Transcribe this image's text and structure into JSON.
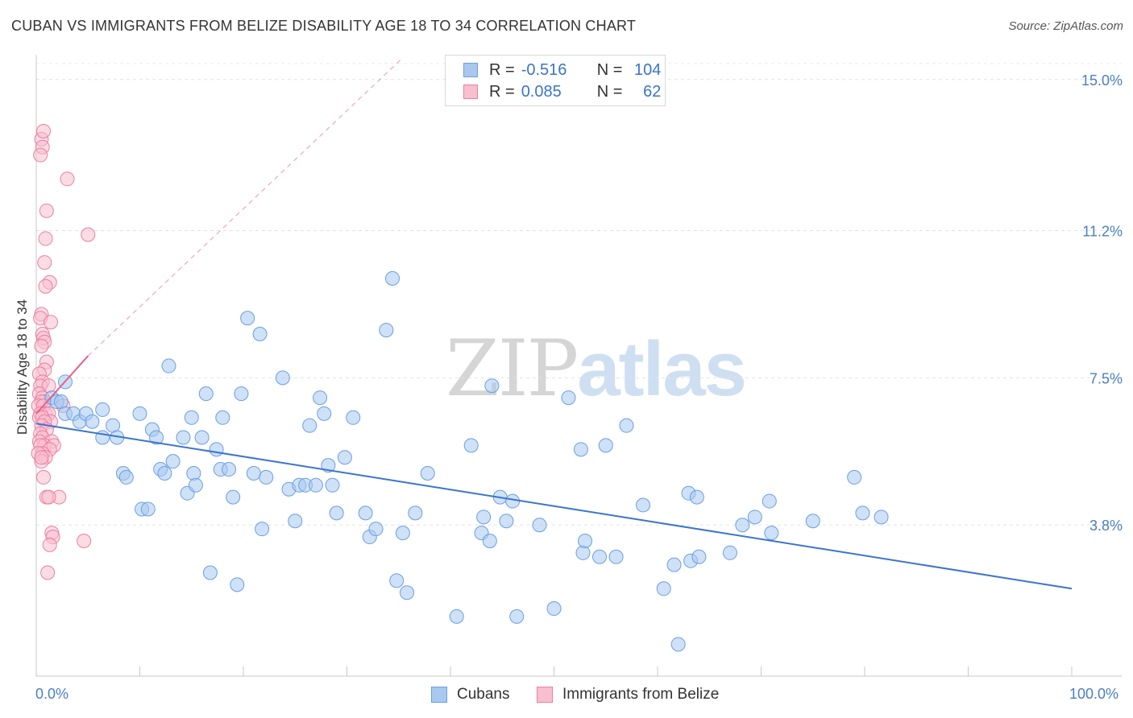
{
  "title": "CUBAN VS IMMIGRANTS FROM BELIZE DISABILITY AGE 18 TO 34 CORRELATION CHART",
  "source": "Source: ZipAtlas.com",
  "watermark": {
    "part1": "ZIP",
    "part2": "atlas"
  },
  "legend": {
    "rows": [
      {
        "r_label": "R =",
        "r_value": "-0.516",
        "n_label": "N =",
        "n_value": "104",
        "color": "#a8c8f0",
        "border": "#6a9fe0"
      },
      {
        "r_label": "R =",
        "r_value": "0.085",
        "n_label": "N =",
        "n_value": "62",
        "color": "#f8bfd0",
        "border": "#ec7fa0"
      }
    ]
  },
  "bottom_legend": [
    {
      "label": "Cubans",
      "color": "#a8c8f0",
      "border": "#6a9fe0"
    },
    {
      "label": "Immigrants from Belize",
      "color": "#f8bfd0",
      "border": "#ec7fa0"
    }
  ],
  "chart_data": {
    "type": "scatter",
    "title": "CUBAN VS IMMIGRANTS FROM BELIZE DISABILITY AGE 18 TO 34 CORRELATION CHART",
    "xlabel": "",
    "ylabel": "Disability Age 18 to 34",
    "xlim": [
      0,
      100
    ],
    "ylim": [
      0,
      15.4
    ],
    "x_tick_labels": [
      "0.0%",
      "100.0%"
    ],
    "y_ticks": [
      {
        "value": 3.8,
        "label": "3.8%"
      },
      {
        "value": 7.5,
        "label": "7.5%"
      },
      {
        "value": 11.2,
        "label": "11.2%"
      },
      {
        "value": 15.0,
        "label": "15.0%"
      }
    ],
    "series": [
      {
        "name": "Cubans",
        "color": "#a8c8f0",
        "stroke": "#6a9fe0",
        "trend": {
          "x0": 0,
          "y0": 6.35,
          "x1": 100,
          "y1": 2.2,
          "color": "#3a74d0"
        },
        "points": [
          [
            1.5,
            7.0
          ],
          [
            2.0,
            6.9
          ],
          [
            2.4,
            6.9
          ],
          [
            2.8,
            7.4
          ],
          [
            2.8,
            6.6
          ],
          [
            3.6,
            6.6
          ],
          [
            4.2,
            6.4
          ],
          [
            4.8,
            6.6
          ],
          [
            5.4,
            6.4
          ],
          [
            6.4,
            6.7
          ],
          [
            6.4,
            6.0
          ],
          [
            7.4,
            6.3
          ],
          [
            7.8,
            6.0
          ],
          [
            8.4,
            5.1
          ],
          [
            8.7,
            5.0
          ],
          [
            10.0,
            6.6
          ],
          [
            10.2,
            4.2
          ],
          [
            10.8,
            4.2
          ],
          [
            11.2,
            6.2
          ],
          [
            11.6,
            6.0
          ],
          [
            12.0,
            5.2
          ],
          [
            12.4,
            5.1
          ],
          [
            12.8,
            7.8
          ],
          [
            13.2,
            5.4
          ],
          [
            14.2,
            6.0
          ],
          [
            14.6,
            4.6
          ],
          [
            15.0,
            6.5
          ],
          [
            15.2,
            5.1
          ],
          [
            15.4,
            4.8
          ],
          [
            16.0,
            6.0
          ],
          [
            16.4,
            7.1
          ],
          [
            16.8,
            2.6
          ],
          [
            17.4,
            5.7
          ],
          [
            17.8,
            5.2
          ],
          [
            18.0,
            6.5
          ],
          [
            18.6,
            5.2
          ],
          [
            19.0,
            4.5
          ],
          [
            19.4,
            2.3
          ],
          [
            19.8,
            7.1
          ],
          [
            20.4,
            9.0
          ],
          [
            21.0,
            5.1
          ],
          [
            21.6,
            8.6
          ],
          [
            21.8,
            3.7
          ],
          [
            22.2,
            5.0
          ],
          [
            23.8,
            7.5
          ],
          [
            24.4,
            4.7
          ],
          [
            25.0,
            3.9
          ],
          [
            25.4,
            4.8
          ],
          [
            26.0,
            4.8
          ],
          [
            26.4,
            6.3
          ],
          [
            27.0,
            4.8
          ],
          [
            27.4,
            7.0
          ],
          [
            27.8,
            6.6
          ],
          [
            28.2,
            5.3
          ],
          [
            28.6,
            4.8
          ],
          [
            29.0,
            4.1
          ],
          [
            29.8,
            5.5
          ],
          [
            30.6,
            6.5
          ],
          [
            31.8,
            4.1
          ],
          [
            32.2,
            3.5
          ],
          [
            32.8,
            3.7
          ],
          [
            33.8,
            8.7
          ],
          [
            34.4,
            10.0
          ],
          [
            34.8,
            2.4
          ],
          [
            35.4,
            3.6
          ],
          [
            35.8,
            2.1
          ],
          [
            36.6,
            4.1
          ],
          [
            37.8,
            5.1
          ],
          [
            40.6,
            1.5
          ],
          [
            42.0,
            5.8
          ],
          [
            43.0,
            3.6
          ],
          [
            43.2,
            4.0
          ],
          [
            43.8,
            3.4
          ],
          [
            44.0,
            7.3
          ],
          [
            44.8,
            4.5
          ],
          [
            45.4,
            3.9
          ],
          [
            46.0,
            4.4
          ],
          [
            46.4,
            1.5
          ],
          [
            48.6,
            3.8
          ],
          [
            50.0,
            1.7
          ],
          [
            51.4,
            7.0
          ],
          [
            52.6,
            5.7
          ],
          [
            52.8,
            3.1
          ],
          [
            53.0,
            3.4
          ],
          [
            54.4,
            3.0
          ],
          [
            55.0,
            5.8
          ],
          [
            56.0,
            3.0
          ],
          [
            57.0,
            6.3
          ],
          [
            58.6,
            4.3
          ],
          [
            60.6,
            2.2
          ],
          [
            61.6,
            2.8
          ],
          [
            62.0,
            0.8
          ],
          [
            63.0,
            4.6
          ],
          [
            63.2,
            2.9
          ],
          [
            63.8,
            4.5
          ],
          [
            64.0,
            3.0
          ],
          [
            67.0,
            3.1
          ],
          [
            68.2,
            3.8
          ],
          [
            69.4,
            4.0
          ],
          [
            70.8,
            4.4
          ],
          [
            71.0,
            3.6
          ],
          [
            75.0,
            3.9
          ],
          [
            79.0,
            5.0
          ],
          [
            79.8,
            4.1
          ],
          [
            81.6,
            4.0
          ]
        ]
      },
      {
        "name": "Immigrants from Belize",
        "color": "#f8bfd0",
        "stroke": "#ec7fa0",
        "trend": {
          "x0": 0,
          "y0": 6.6,
          "x1": 5.0,
          "y1": 8.05,
          "color": "#e8608a"
        },
        "extension": {
          "x0": 5.0,
          "y0": 8.05,
          "x1": 35.2,
          "y1": 15.5,
          "color": "#f0a6bd"
        },
        "points": [
          [
            0.5,
            13.5
          ],
          [
            0.6,
            13.3
          ],
          [
            0.7,
            13.7
          ],
          [
            0.4,
            13.1
          ],
          [
            3.0,
            12.5
          ],
          [
            1.0,
            11.7
          ],
          [
            0.9,
            11.0
          ],
          [
            5.0,
            11.1
          ],
          [
            1.3,
            9.9
          ],
          [
            0.9,
            9.8
          ],
          [
            0.8,
            10.4
          ],
          [
            0.5,
            9.1
          ],
          [
            0.4,
            9.0
          ],
          [
            1.4,
            8.9
          ],
          [
            0.6,
            8.6
          ],
          [
            0.7,
            8.5
          ],
          [
            0.8,
            8.4
          ],
          [
            0.5,
            8.3
          ],
          [
            1.0,
            7.9
          ],
          [
            0.8,
            7.7
          ],
          [
            0.3,
            7.6
          ],
          [
            0.6,
            7.4
          ],
          [
            0.4,
            7.3
          ],
          [
            1.2,
            7.3
          ],
          [
            0.3,
            7.1
          ],
          [
            0.6,
            7.0
          ],
          [
            0.8,
            6.9
          ],
          [
            0.5,
            6.9
          ],
          [
            0.2,
            6.8
          ],
          [
            0.7,
            6.8
          ],
          [
            2.6,
            6.8
          ],
          [
            0.9,
            6.6
          ],
          [
            0.4,
            6.6
          ],
          [
            1.2,
            6.6
          ],
          [
            0.3,
            6.5
          ],
          [
            0.6,
            6.5
          ],
          [
            1.4,
            6.4
          ],
          [
            0.8,
            6.4
          ],
          [
            0.5,
            6.3
          ],
          [
            1.0,
            6.2
          ],
          [
            0.4,
            6.1
          ],
          [
            0.6,
            6.0
          ],
          [
            1.5,
            5.9
          ],
          [
            0.3,
            5.9
          ],
          [
            0.8,
            5.8
          ],
          [
            0.4,
            5.8
          ],
          [
            1.7,
            5.8
          ],
          [
            1.3,
            5.7
          ],
          [
            0.6,
            5.6
          ],
          [
            0.2,
            5.6
          ],
          [
            0.9,
            5.5
          ],
          [
            0.5,
            5.4
          ],
          [
            0.7,
            5.0
          ],
          [
            2.2,
            4.5
          ],
          [
            1.0,
            4.5
          ],
          [
            1.2,
            4.5
          ],
          [
            1.5,
            3.6
          ],
          [
            1.6,
            3.5
          ],
          [
            1.3,
            3.3
          ],
          [
            4.6,
            3.4
          ],
          [
            1.1,
            2.6
          ],
          [
            0.5,
            5.5
          ]
        ]
      }
    ]
  }
}
